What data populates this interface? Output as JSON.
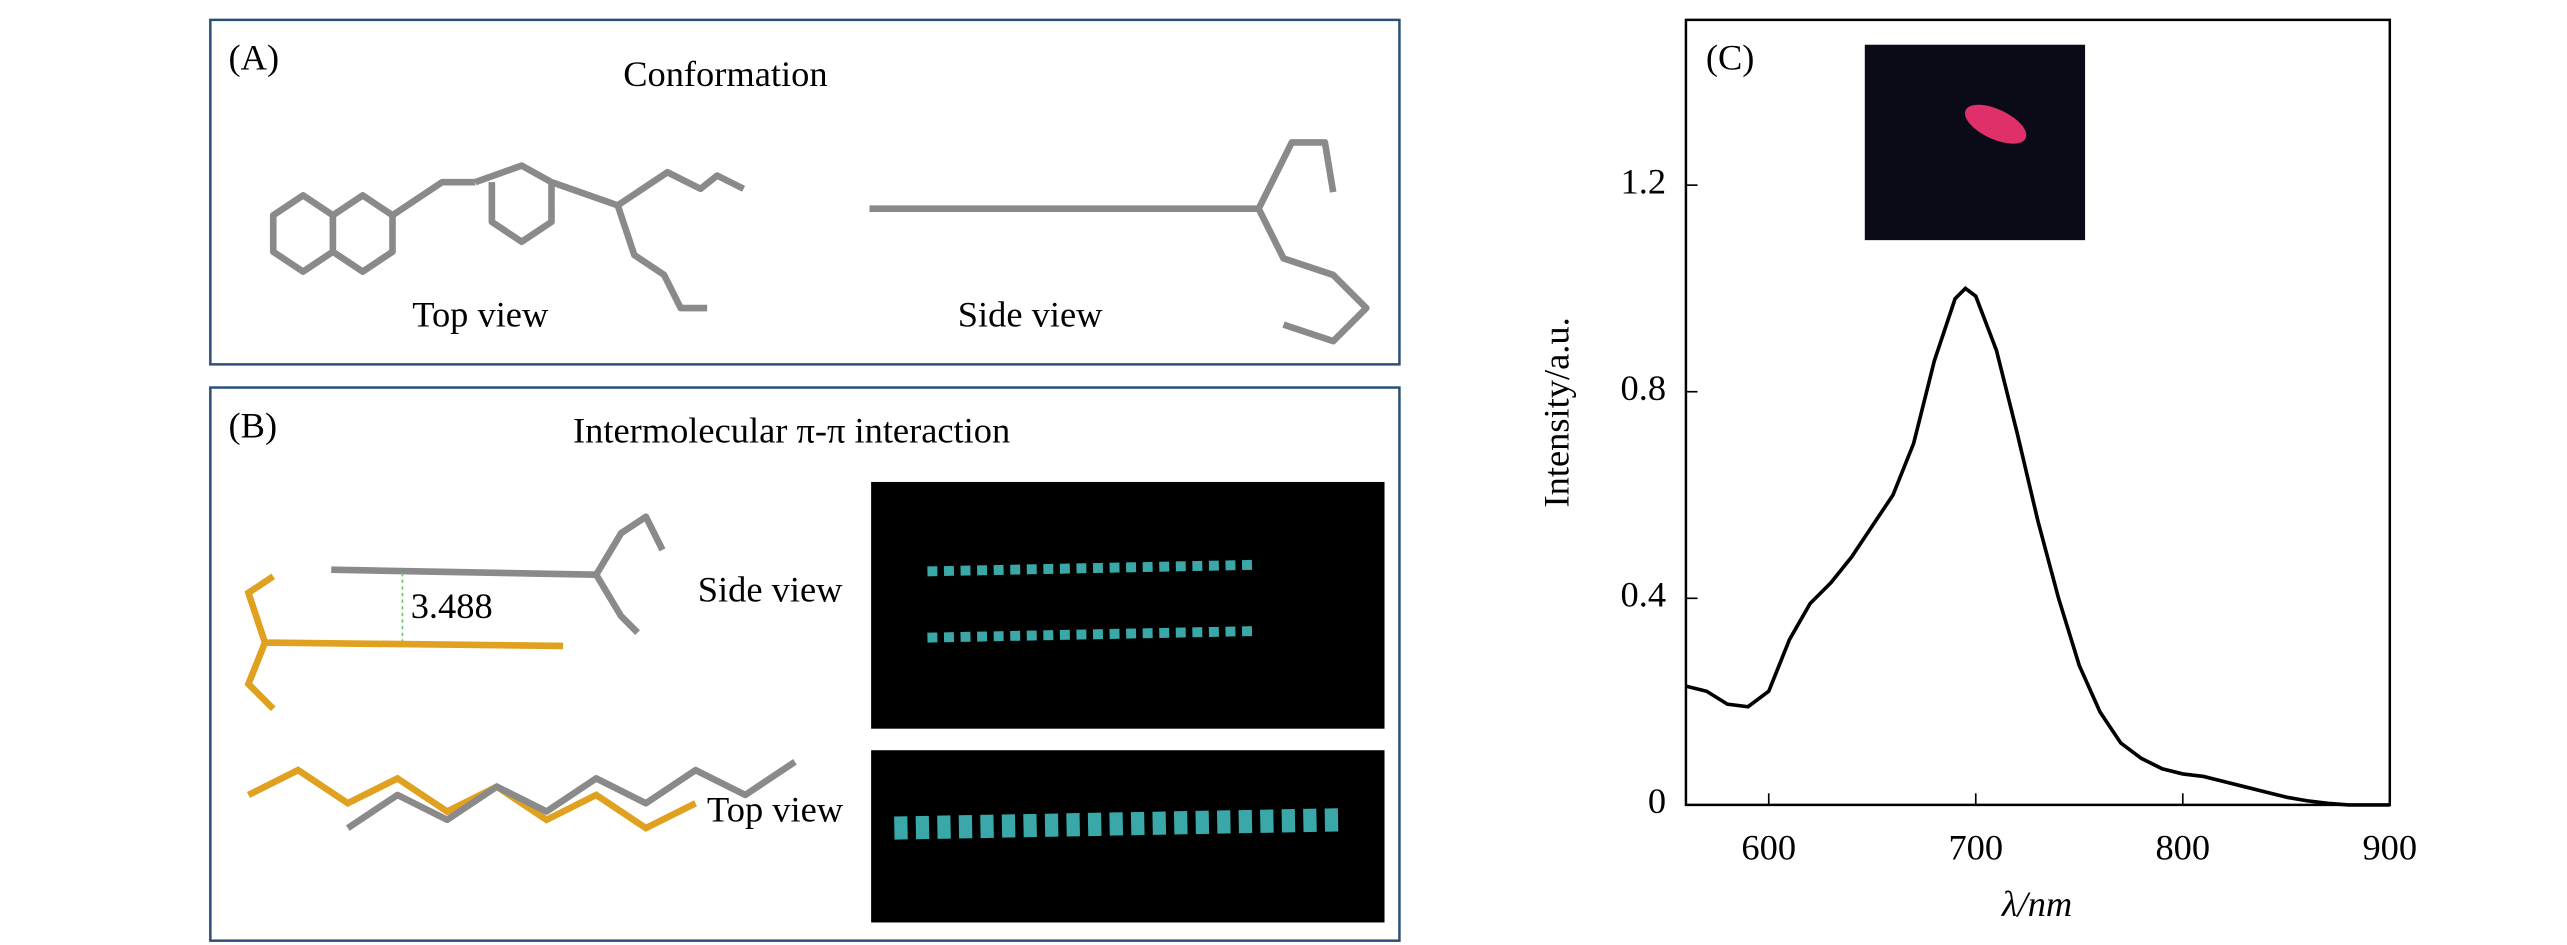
{
  "panels": {
    "a": {
      "label": "(A)",
      "title": "Conformation",
      "top": "Top view",
      "side": "Side view"
    },
    "b": {
      "label": "(B)",
      "title": "Intermolecular π-π interaction",
      "distance": "3.488",
      "side": "Side view",
      "top": "Top view"
    }
  },
  "chart_data": {
    "type": "line",
    "panel": "(C)",
    "x_label": "λ/nm",
    "y_label": "Intensity/a.u.",
    "x": [
      560,
      570,
      580,
      590,
      600,
      610,
      620,
      630,
      640,
      650,
      660,
      670,
      680,
      690,
      695,
      700,
      710,
      720,
      730,
      740,
      750,
      760,
      770,
      780,
      790,
      800,
      810,
      820,
      830,
      840,
      850,
      860,
      870,
      880,
      890,
      900
    ],
    "values": [
      0.23,
      0.22,
      0.195,
      0.19,
      0.22,
      0.32,
      0.39,
      0.43,
      0.48,
      0.54,
      0.6,
      0.7,
      0.86,
      0.98,
      1.0,
      0.985,
      0.88,
      0.72,
      0.55,
      0.4,
      0.27,
      0.18,
      0.12,
      0.09,
      0.07,
      0.06,
      0.055,
      0.045,
      0.035,
      0.025,
      0.015,
      0.008,
      0.003,
      0,
      0,
      0
    ],
    "color": "#000000",
    "xlim": [
      560,
      900
    ],
    "xticks": [
      600,
      700,
      800,
      900
    ],
    "ylim": [
      0,
      1.52
    ],
    "yticks": [
      0,
      0.4,
      0.8,
      1.2
    ]
  }
}
